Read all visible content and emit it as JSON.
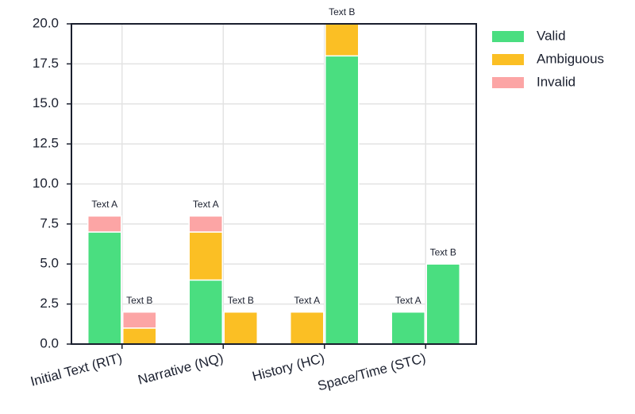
{
  "chart_data": {
    "type": "grouped-stacked-bar",
    "categories": [
      "Initial Text (RIT)",
      "Narrative (NQ)",
      "History (HC)",
      "Space/Time (STC)"
    ],
    "groups": [
      "Text A",
      "Text B"
    ],
    "series": [
      {
        "name": "Valid",
        "color": "#4ade80",
        "values": [
          [
            7,
            0
          ],
          [
            4,
            0
          ],
          [
            0,
            18
          ],
          [
            2,
            5
          ]
        ]
      },
      {
        "name": "Ambiguous",
        "color": "#fbbf24",
        "values": [
          [
            0,
            1
          ],
          [
            3,
            2
          ],
          [
            2,
            2
          ],
          [
            0,
            0
          ]
        ]
      },
      {
        "name": "Invalid",
        "color": "#fca5a5",
        "values": [
          [
            1,
            1
          ],
          [
            1,
            0
          ],
          [
            0,
            0
          ],
          [
            0,
            0
          ]
        ]
      }
    ],
    "ylim": [
      0,
      20
    ],
    "yticks": [
      {
        "value": 0,
        "label": "0.0"
      },
      {
        "value": 2.5,
        "label": "2.5"
      },
      {
        "value": 5,
        "label": "5.0"
      },
      {
        "value": 7.5,
        "label": "7.5"
      },
      {
        "value": 10,
        "label": "10.0"
      },
      {
        "value": 12.5,
        "label": "12.5"
      },
      {
        "value": 15,
        "label": "15.0"
      },
      {
        "value": 17.5,
        "label": "17.5"
      },
      {
        "value": 20,
        "label": "20.0"
      }
    ],
    "grid": true,
    "legend": "upper right outside"
  }
}
